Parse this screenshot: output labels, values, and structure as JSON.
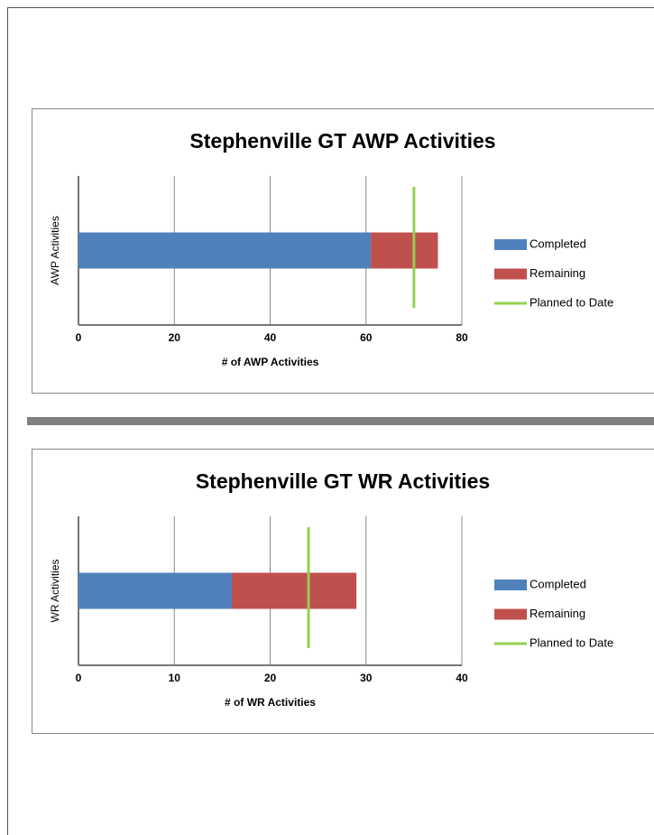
{
  "chart_data": [
    {
      "type": "bar",
      "title": "Stephenville GT AWP Activities",
      "ylabel": "AWP Activities",
      "xlabel": "# of AWP Activities",
      "categories": [
        null
      ],
      "series": [
        {
          "name": "Completed",
          "color": "#4f81bd",
          "values": [
            61
          ]
        },
        {
          "name": "Remaining",
          "color": "#c0504d",
          "values": [
            14
          ]
        },
        {
          "name": "Planned to Date",
          "color": "#92d050",
          "values": [
            70
          ],
          "type": "line"
        }
      ],
      "xlim": [
        0,
        80
      ],
      "xticks": [
        0,
        20,
        40,
        60,
        80
      ],
      "grid": true,
      "legend": "right"
    },
    {
      "type": "bar",
      "title": "Stephenville GT WR Activities",
      "ylabel": "WR Activities",
      "xlabel": "# of WR Activities",
      "categories": [
        null
      ],
      "series": [
        {
          "name": "Completed",
          "color": "#4f81bd",
          "values": [
            16
          ]
        },
        {
          "name": "Remaining",
          "color": "#c0504d",
          "values": [
            13
          ]
        },
        {
          "name": "Planned to Date",
          "color": "#92d050",
          "values": [
            24
          ],
          "type": "line"
        }
      ],
      "xlim": [
        0,
        40
      ],
      "xticks": [
        0,
        10,
        20,
        30,
        40
      ],
      "grid": true,
      "legend": "right"
    }
  ]
}
